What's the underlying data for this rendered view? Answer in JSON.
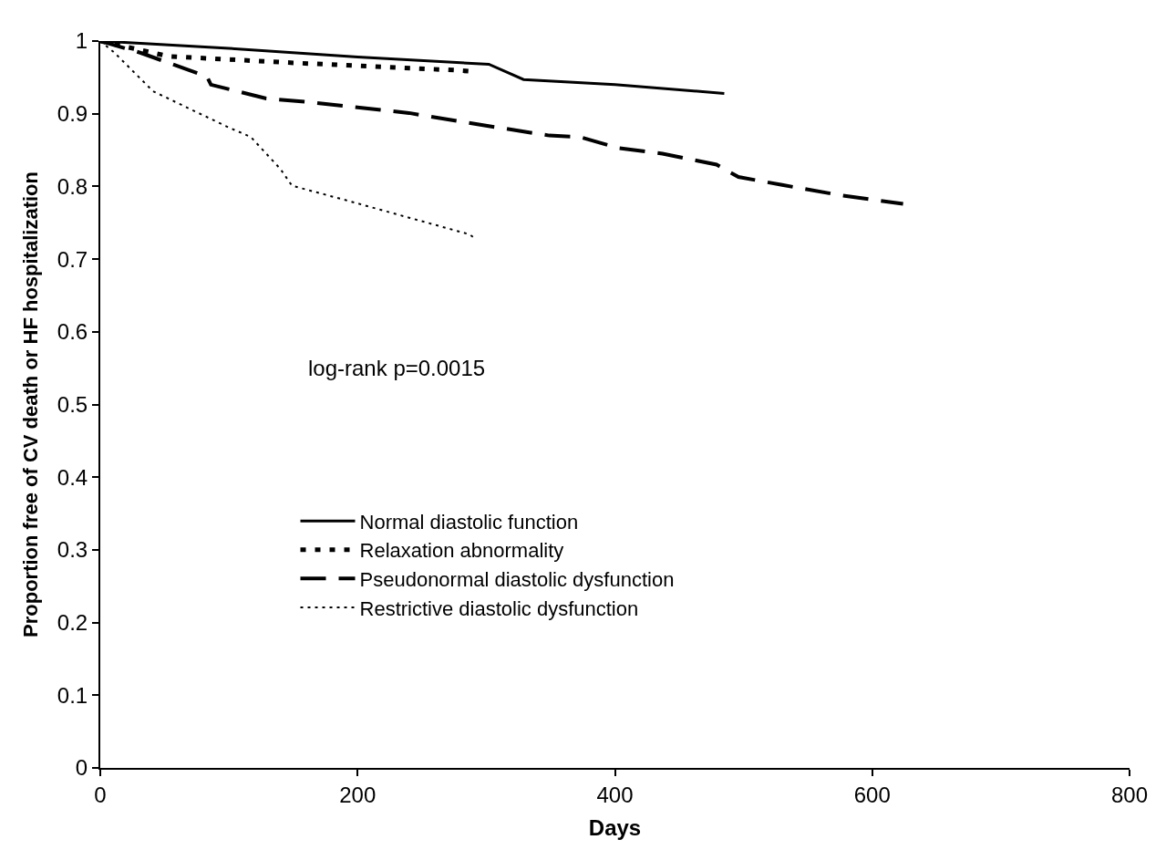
{
  "chart_data": {
    "type": "line",
    "xlabel": "Days",
    "ylabel": "Proportion free of CV death or HF hospitalization",
    "xlim": [
      0,
      800
    ],
    "xticks": [
      0,
      200,
      400,
      600,
      800
    ],
    "ylim": [
      0,
      1
    ],
    "yticks": [
      0,
      0.1,
      0.2,
      0.3,
      0.4,
      0.5,
      0.6,
      0.7,
      0.8,
      0.9,
      1
    ],
    "legend": "center",
    "marker": "none",
    "annotations": [
      "log-rank p=0.0015"
    ],
    "series": [
      {
        "name": "Normal diastolic function",
        "color": "#000000",
        "line_style": "solid",
        "x": [
          0,
          100,
          200,
          302,
          329,
          400,
          485
        ],
        "values": [
          1,
          0.99,
          0.978,
          0.968,
          0.947,
          0.94,
          0.928
        ]
      },
      {
        "name": "Relaxation abnormality",
        "color": "#000000",
        "line_style": "dashed",
        "x": [
          0,
          53,
          150,
          275,
          290
        ],
        "values": [
          1,
          0.979,
          0.97,
          0.96,
          0.958
        ]
      },
      {
        "name": "Pseudonormal diastolic dysfunction",
        "color": "#000000",
        "line_style": "long dashed",
        "x": [
          0,
          31,
          83,
          86,
          129,
          162,
          240,
          284,
          349,
          373,
          402,
          437,
          479,
          496,
          530,
          575,
          624
        ],
        "values": [
          1,
          0.984,
          0.951,
          0.94,
          0.921,
          0.916,
          0.901,
          0.888,
          0.87,
          0.868,
          0.853,
          0.845,
          0.83,
          0.813,
          0.802,
          0.788,
          0.776
        ]
      },
      {
        "name": "Restrictive diastolic dysfunction",
        "color": "#000000",
        "line_style": "dotted",
        "x": [
          0,
          11,
          24,
          41,
          68,
          100,
          117,
          140,
          149,
          191,
          240,
          287,
          290
        ],
        "values": [
          1,
          0.984,
          0.961,
          0.931,
          0.908,
          0.881,
          0.868,
          0.824,
          0.801,
          0.781,
          0.757,
          0.734,
          0.73
        ]
      }
    ]
  }
}
